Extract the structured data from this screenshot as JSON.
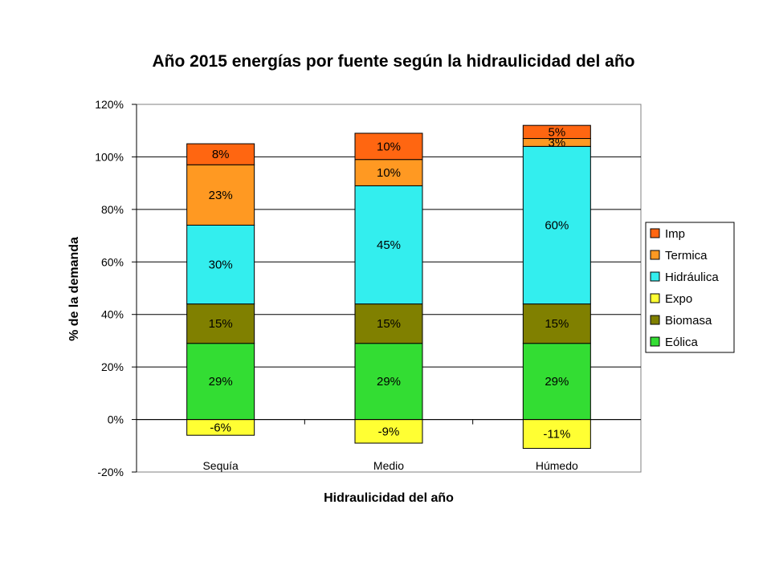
{
  "chart_data": {
    "type": "bar",
    "stacked": true,
    "title": "Año 2015 energías por fuente según la hidraulicidad del año",
    "xlabel": "Hidraulicidad del año",
    "ylabel": "% de la demanda",
    "ylim": [
      -20,
      120
    ],
    "y_ticks": [
      -20,
      0,
      20,
      40,
      60,
      80,
      100,
      120
    ],
    "y_tick_labels": [
      "-20%",
      "0%",
      "20%",
      "40%",
      "60%",
      "80%",
      "100%",
      "120%"
    ],
    "grid": "horizontal",
    "legend_position": "right",
    "categories": [
      "Sequía",
      "Medio",
      "Húmedo"
    ],
    "series": [
      {
        "name": "Eólica",
        "color": "#33dd33",
        "values": [
          29,
          29,
          29
        ],
        "labels": [
          "29%",
          "29%",
          "29%"
        ]
      },
      {
        "name": "Biomasa",
        "color": "#808000",
        "values": [
          15,
          15,
          15
        ],
        "labels": [
          "15%",
          "15%",
          "15%"
        ]
      },
      {
        "name": "Expo",
        "color": "#ffff33",
        "values": [
          -6,
          -9,
          -11
        ],
        "labels": [
          "-6%",
          "-9%",
          "-11%"
        ]
      },
      {
        "name": "Hidráulica",
        "color": "#33eeee",
        "values": [
          30,
          45,
          60
        ],
        "labels": [
          "30%",
          "45%",
          "60%"
        ]
      },
      {
        "name": "Termica",
        "color": "#ff9922",
        "values": [
          23,
          10,
          3
        ],
        "labels": [
          "23%",
          "10%",
          "3%"
        ]
      },
      {
        "name": "Imp",
        "color": "#ff6611",
        "values": [
          8,
          10,
          5
        ],
        "labels": [
          "8%",
          "10%",
          "5%"
        ]
      }
    ],
    "legend_order": [
      "Imp",
      "Termica",
      "Hidráulica",
      "Expo",
      "Biomasa",
      "Eólica"
    ]
  }
}
